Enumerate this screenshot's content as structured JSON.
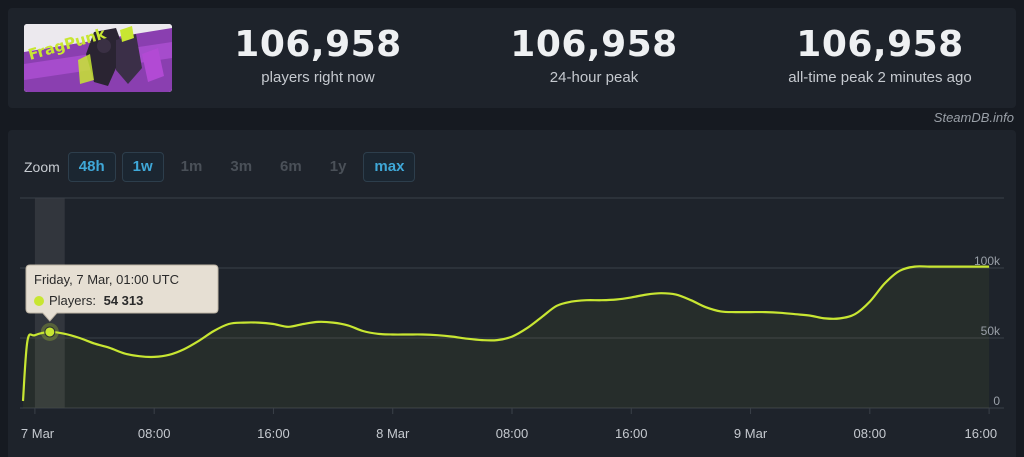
{
  "stats": [
    {
      "value": "106,958",
      "label": "players right now"
    },
    {
      "value": "106,958",
      "label": "24-hour peak"
    },
    {
      "value": "106,958",
      "label": "all-time peak 2 minutes ago"
    }
  ],
  "credit": "SteamDB.info",
  "zoom": {
    "label": "Zoom",
    "buttons": [
      {
        "label": "48h",
        "active": true
      },
      {
        "label": "1w",
        "active": true
      },
      {
        "label": "1m",
        "active": false
      },
      {
        "label": "3m",
        "active": false
      },
      {
        "label": "6m",
        "active": false
      },
      {
        "label": "1y",
        "active": false
      },
      {
        "label": "max",
        "active": true
      }
    ]
  },
  "tooltip": {
    "title": "Friday, 7 Mar, 01:00 UTC",
    "series_label": "Players:",
    "value": "54 313"
  },
  "colors": {
    "line": "#c8e632",
    "grid": "#3a4048",
    "text": "#c5c9cf"
  },
  "chart_data": {
    "type": "line",
    "series": [
      {
        "name": "Players",
        "x": [
          -0.8,
          -0.5,
          0,
          1,
          2,
          3,
          4,
          5,
          6,
          7,
          8,
          9,
          10,
          11,
          12,
          13,
          14,
          15,
          16,
          17,
          18,
          19,
          20,
          21,
          22,
          23,
          24,
          25,
          26,
          27,
          28,
          29,
          30,
          31,
          32,
          33,
          34,
          35,
          36,
          37,
          38,
          39,
          40,
          41,
          42,
          43,
          44,
          45,
          46,
          47,
          48,
          49,
          50,
          51,
          52,
          53,
          54,
          55,
          56,
          57,
          58,
          59,
          60,
          61,
          62,
          63,
          64
        ],
        "values": [
          5000,
          48000,
          52000,
          54313,
          53000,
          50000,
          46000,
          43000,
          39000,
          37000,
          36500,
          38000,
          42000,
          48000,
          55000,
          60000,
          61000,
          61000,
          60000,
          58000,
          60000,
          61500,
          61000,
          59000,
          55000,
          53000,
          52500,
          52500,
          52500,
          52000,
          51000,
          49500,
          48500,
          48500,
          51000,
          57000,
          65000,
          73000,
          76000,
          77000,
          77000,
          77500,
          79000,
          81000,
          82000,
          81000,
          77000,
          72000,
          69000,
          68500,
          68500,
          68500,
          68000,
          67000,
          66000,
          64000,
          64000,
          67000,
          76000,
          89000,
          98000,
          101000,
          101000,
          101000,
          101000,
          101000,
          101000
        ]
      }
    ],
    "x_tick_labels": [
      {
        "x": 0,
        "label": "7 Mar"
      },
      {
        "x": 8,
        "label": "08:00"
      },
      {
        "x": 16,
        "label": "16:00"
      },
      {
        "x": 24,
        "label": "8 Mar"
      },
      {
        "x": 32,
        "label": "08:00"
      },
      {
        "x": 40,
        "label": "16:00"
      },
      {
        "x": 48,
        "label": "9 Mar"
      },
      {
        "x": 56,
        "label": "08:00"
      },
      {
        "x": 64,
        "label": "16:00"
      }
    ],
    "y_ticks": [
      {
        "value": 0,
        "label": "0"
      },
      {
        "value": 50000,
        "label": "50k"
      },
      {
        "value": 100000,
        "label": "100k"
      }
    ],
    "xlim": [
      -1,
      65
    ],
    "ylim": [
      0,
      150000
    ],
    "highlight": {
      "x": 1,
      "value": 54313
    },
    "grid": true
  }
}
